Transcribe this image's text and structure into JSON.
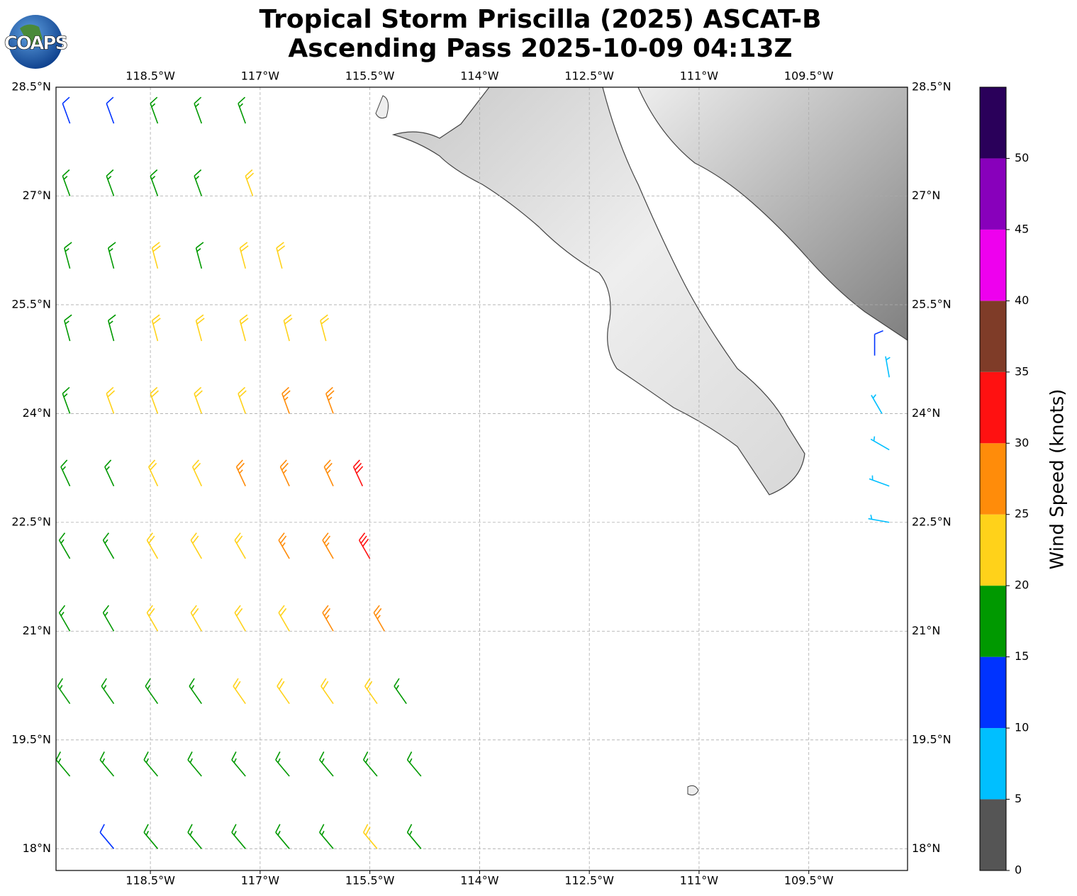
{
  "chart_data": {
    "type": "wind-barb-map",
    "title": [
      "Tropical Storm Priscilla (2025) ASCAT-B",
      "Ascending Pass 2025-10-09 04:13Z"
    ],
    "logo": "COAPS",
    "xlim": [
      -119.79,
      -108.15
    ],
    "ylim": [
      17.7,
      28.5
    ],
    "xticks": [
      {
        "value": -118.5,
        "label": "118.5°W"
      },
      {
        "value": -117,
        "label": "117°W"
      },
      {
        "value": -115.5,
        "label": "115.5°W"
      },
      {
        "value": -114,
        "label": "114°W"
      },
      {
        "value": -112.5,
        "label": "112.5°W"
      },
      {
        "value": -111,
        "label": "111°W"
      },
      {
        "value": -109.5,
        "label": "109.5°W"
      }
    ],
    "yticks": [
      {
        "value": 18,
        "label": "18°N"
      },
      {
        "value": 19.5,
        "label": "19.5°N"
      },
      {
        "value": 21,
        "label": "21°N"
      },
      {
        "value": 22.5,
        "label": "22.5°N"
      },
      {
        "value": 24,
        "label": "24°N"
      },
      {
        "value": 25.5,
        "label": "25.5°N"
      },
      {
        "value": 27,
        "label": "27°N"
      },
      {
        "value": 28.5,
        "label": "28.5°N"
      }
    ],
    "grid": true,
    "colorbar": {
      "label": "Wind Speed (knots)",
      "bounds": [
        0,
        5,
        10,
        15,
        20,
        25,
        30,
        35,
        40,
        45,
        50,
        55
      ],
      "colors": [
        "#555555",
        "#00bfff",
        "#0033ff",
        "#009900",
        "#ffd21a",
        "#ff8c0a",
        "#ff1111",
        "#7f3c28",
        "#ee00ee",
        "#8800bb",
        "#2a005a"
      ],
      "ticks": [
        0,
        5,
        10,
        15,
        20,
        25,
        30,
        35,
        40,
        45,
        50
      ]
    },
    "barbs": [
      {
        "lon": -119.6,
        "lat": 28,
        "speed": 12,
        "dir": 340
      },
      {
        "lon": -119.0,
        "lat": 28,
        "speed": 12,
        "dir": 340
      },
      {
        "lon": -118.4,
        "lat": 28,
        "speed": 16,
        "dir": 340
      },
      {
        "lon": -117.8,
        "lat": 28,
        "speed": 17,
        "dir": 340
      },
      {
        "lon": -117.2,
        "lat": 28,
        "speed": 17,
        "dir": 340
      },
      {
        "lon": -119.6,
        "lat": 27,
        "speed": 16,
        "dir": 340
      },
      {
        "lon": -119.0,
        "lat": 27,
        "speed": 17,
        "dir": 340
      },
      {
        "lon": -118.4,
        "lat": 27,
        "speed": 17,
        "dir": 340
      },
      {
        "lon": -117.8,
        "lat": 27,
        "speed": 17,
        "dir": 340
      },
      {
        "lon": -117.1,
        "lat": 27,
        "speed": 22,
        "dir": 340
      },
      {
        "lon": -119.6,
        "lat": 26,
        "speed": 17,
        "dir": 345
      },
      {
        "lon": -119.0,
        "lat": 26,
        "speed": 17,
        "dir": 345
      },
      {
        "lon": -118.4,
        "lat": 26,
        "speed": 22,
        "dir": 345
      },
      {
        "lon": -117.8,
        "lat": 26,
        "speed": 17,
        "dir": 345
      },
      {
        "lon": -117.2,
        "lat": 26,
        "speed": 22,
        "dir": 345
      },
      {
        "lon": -116.7,
        "lat": 26,
        "speed": 22,
        "dir": 345
      },
      {
        "lon": -119.6,
        "lat": 25,
        "speed": 17,
        "dir": 345
      },
      {
        "lon": -119.0,
        "lat": 25,
        "speed": 17,
        "dir": 345
      },
      {
        "lon": -118.4,
        "lat": 25,
        "speed": 22,
        "dir": 345
      },
      {
        "lon": -117.8,
        "lat": 25,
        "speed": 22,
        "dir": 345
      },
      {
        "lon": -117.2,
        "lat": 25,
        "speed": 22,
        "dir": 345
      },
      {
        "lon": -116.6,
        "lat": 25,
        "speed": 22,
        "dir": 345
      },
      {
        "lon": -116.1,
        "lat": 25,
        "speed": 24,
        "dir": 345
      },
      {
        "lon": -119.6,
        "lat": 24,
        "speed": 17,
        "dir": 340
      },
      {
        "lon": -119.0,
        "lat": 24,
        "speed": 22,
        "dir": 340
      },
      {
        "lon": -118.4,
        "lat": 24,
        "speed": 22,
        "dir": 340
      },
      {
        "lon": -117.8,
        "lat": 24,
        "speed": 22,
        "dir": 340
      },
      {
        "lon": -117.2,
        "lat": 24,
        "speed": 22,
        "dir": 340
      },
      {
        "lon": -116.6,
        "lat": 24,
        "speed": 27,
        "dir": 340
      },
      {
        "lon": -116.0,
        "lat": 24,
        "speed": 27,
        "dir": 340
      },
      {
        "lon": -119.6,
        "lat": 23,
        "speed": 17,
        "dir": 335
      },
      {
        "lon": -119.0,
        "lat": 23,
        "speed": 17,
        "dir": 335
      },
      {
        "lon": -118.4,
        "lat": 23,
        "speed": 22,
        "dir": 335
      },
      {
        "lon": -117.8,
        "lat": 23,
        "speed": 22,
        "dir": 335
      },
      {
        "lon": -117.2,
        "lat": 23,
        "speed": 27,
        "dir": 335
      },
      {
        "lon": -116.6,
        "lat": 23,
        "speed": 27,
        "dir": 335
      },
      {
        "lon": -116.0,
        "lat": 23,
        "speed": 27,
        "dir": 335
      },
      {
        "lon": -115.6,
        "lat": 23,
        "speed": 31,
        "dir": 335
      },
      {
        "lon": -119.6,
        "lat": 22,
        "speed": 17,
        "dir": 330
      },
      {
        "lon": -119.0,
        "lat": 22,
        "speed": 17,
        "dir": 330
      },
      {
        "lon": -118.4,
        "lat": 22,
        "speed": 22,
        "dir": 330
      },
      {
        "lon": -117.8,
        "lat": 22,
        "speed": 22,
        "dir": 330
      },
      {
        "lon": -117.2,
        "lat": 22,
        "speed": 22,
        "dir": 330
      },
      {
        "lon": -116.6,
        "lat": 22,
        "speed": 27,
        "dir": 330
      },
      {
        "lon": -116.0,
        "lat": 22,
        "speed": 27,
        "dir": 330
      },
      {
        "lon": -115.5,
        "lat": 22,
        "speed": 31,
        "dir": 330
      },
      {
        "lon": -119.6,
        "lat": 21,
        "speed": 17,
        "dir": 330
      },
      {
        "lon": -119.0,
        "lat": 21,
        "speed": 17,
        "dir": 330
      },
      {
        "lon": -118.4,
        "lat": 21,
        "speed": 22,
        "dir": 330
      },
      {
        "lon": -117.8,
        "lat": 21,
        "speed": 22,
        "dir": 330
      },
      {
        "lon": -117.2,
        "lat": 21,
        "speed": 22,
        "dir": 330
      },
      {
        "lon": -116.6,
        "lat": 21,
        "speed": 22,
        "dir": 330
      },
      {
        "lon": -116.0,
        "lat": 21,
        "speed": 27,
        "dir": 330
      },
      {
        "lon": -115.3,
        "lat": 21,
        "speed": 27,
        "dir": 330
      },
      {
        "lon": -119.6,
        "lat": 20,
        "speed": 17,
        "dir": 325
      },
      {
        "lon": -119.0,
        "lat": 20,
        "speed": 17,
        "dir": 325
      },
      {
        "lon": -118.4,
        "lat": 20,
        "speed": 17,
        "dir": 325
      },
      {
        "lon": -117.8,
        "lat": 20,
        "speed": 17,
        "dir": 325
      },
      {
        "lon": -117.2,
        "lat": 20,
        "speed": 22,
        "dir": 325
      },
      {
        "lon": -116.6,
        "lat": 20,
        "speed": 22,
        "dir": 325
      },
      {
        "lon": -116.0,
        "lat": 20,
        "speed": 22,
        "dir": 325
      },
      {
        "lon": -115.4,
        "lat": 20,
        "speed": 22,
        "dir": 325
      },
      {
        "lon": -115.0,
        "lat": 20,
        "speed": 17,
        "dir": 325
      },
      {
        "lon": -119.6,
        "lat": 19,
        "speed": 17,
        "dir": 320
      },
      {
        "lon": -119.0,
        "lat": 19,
        "speed": 17,
        "dir": 320
      },
      {
        "lon": -118.4,
        "lat": 19,
        "speed": 17,
        "dir": 320
      },
      {
        "lon": -117.8,
        "lat": 19,
        "speed": 17,
        "dir": 320
      },
      {
        "lon": -117.2,
        "lat": 19,
        "speed": 17,
        "dir": 320
      },
      {
        "lon": -116.6,
        "lat": 19,
        "speed": 17,
        "dir": 320
      },
      {
        "lon": -116.0,
        "lat": 19,
        "speed": 17,
        "dir": 320
      },
      {
        "lon": -115.4,
        "lat": 19,
        "speed": 17,
        "dir": 320
      },
      {
        "lon": -114.8,
        "lat": 19,
        "speed": 17,
        "dir": 320
      },
      {
        "lon": -119.0,
        "lat": 18,
        "speed": 12,
        "dir": 320
      },
      {
        "lon": -118.4,
        "lat": 18,
        "speed": 17,
        "dir": 320
      },
      {
        "lon": -117.8,
        "lat": 18,
        "speed": 17,
        "dir": 320
      },
      {
        "lon": -117.2,
        "lat": 18,
        "speed": 17,
        "dir": 320
      },
      {
        "lon": -116.6,
        "lat": 18,
        "speed": 17,
        "dir": 320
      },
      {
        "lon": -116.0,
        "lat": 18,
        "speed": 17,
        "dir": 320
      },
      {
        "lon": -115.4,
        "lat": 18,
        "speed": 22,
        "dir": 320
      },
      {
        "lon": -114.8,
        "lat": 18,
        "speed": 17,
        "dir": 320
      },
      {
        "lon": -108.6,
        "lat": 24.8,
        "speed": 12,
        "dir": 0
      },
      {
        "lon": -108.4,
        "lat": 24.5,
        "speed": 8,
        "dir": 350
      },
      {
        "lon": -108.5,
        "lat": 24.0,
        "speed": 8,
        "dir": 330
      },
      {
        "lon": -108.4,
        "lat": 23.5,
        "speed": 8,
        "dir": 300
      },
      {
        "lon": -108.4,
        "lat": 23.0,
        "speed": 8,
        "dir": 290
      },
      {
        "lon": -108.4,
        "lat": 22.5,
        "speed": 8,
        "dir": 280
      }
    ]
  }
}
